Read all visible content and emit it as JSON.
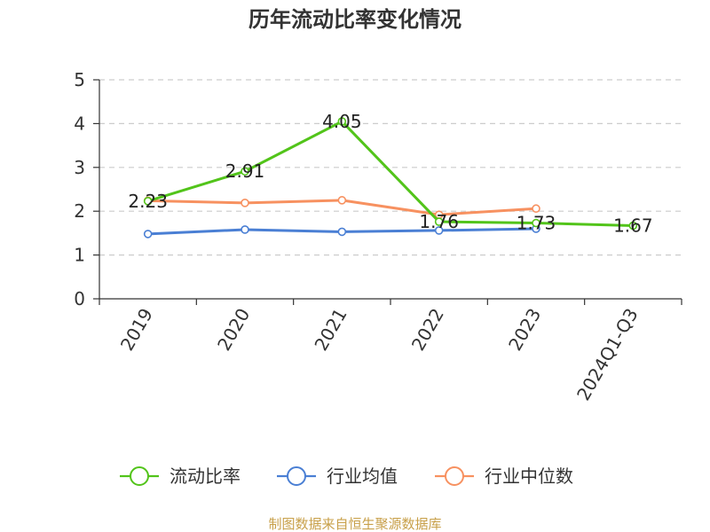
{
  "chart_data": {
    "type": "line",
    "title": "历年流动比率变化情况",
    "categories": [
      "2019",
      "2020",
      "2021",
      "2022",
      "2023",
      "2024Q1-Q3"
    ],
    "ylim": [
      0,
      5
    ],
    "yticks": [
      "0",
      "1",
      "2",
      "3",
      "4",
      "5"
    ],
    "grid": true,
    "legend_position": "bottom",
    "series": [
      {
        "name": "流动比率",
        "color": "#52c41a",
        "values": [
          2.23,
          2.91,
          4.05,
          1.76,
          1.73,
          1.67
        ],
        "labels": [
          "2.23",
          "2.91",
          "4.05",
          "1.76",
          "1.73",
          "1.67"
        ]
      },
      {
        "name": "行业均值",
        "color": "#4a7fd4",
        "values": [
          1.48,
          1.58,
          1.53,
          1.56,
          1.6,
          null
        ]
      },
      {
        "name": "行业中位数",
        "color": "#f79160",
        "values": [
          2.24,
          2.19,
          2.25,
          1.92,
          2.06,
          null
        ]
      }
    ],
    "source": "制图数据来自恒生聚源数据库",
    "source_color": "#c8a04a"
  }
}
